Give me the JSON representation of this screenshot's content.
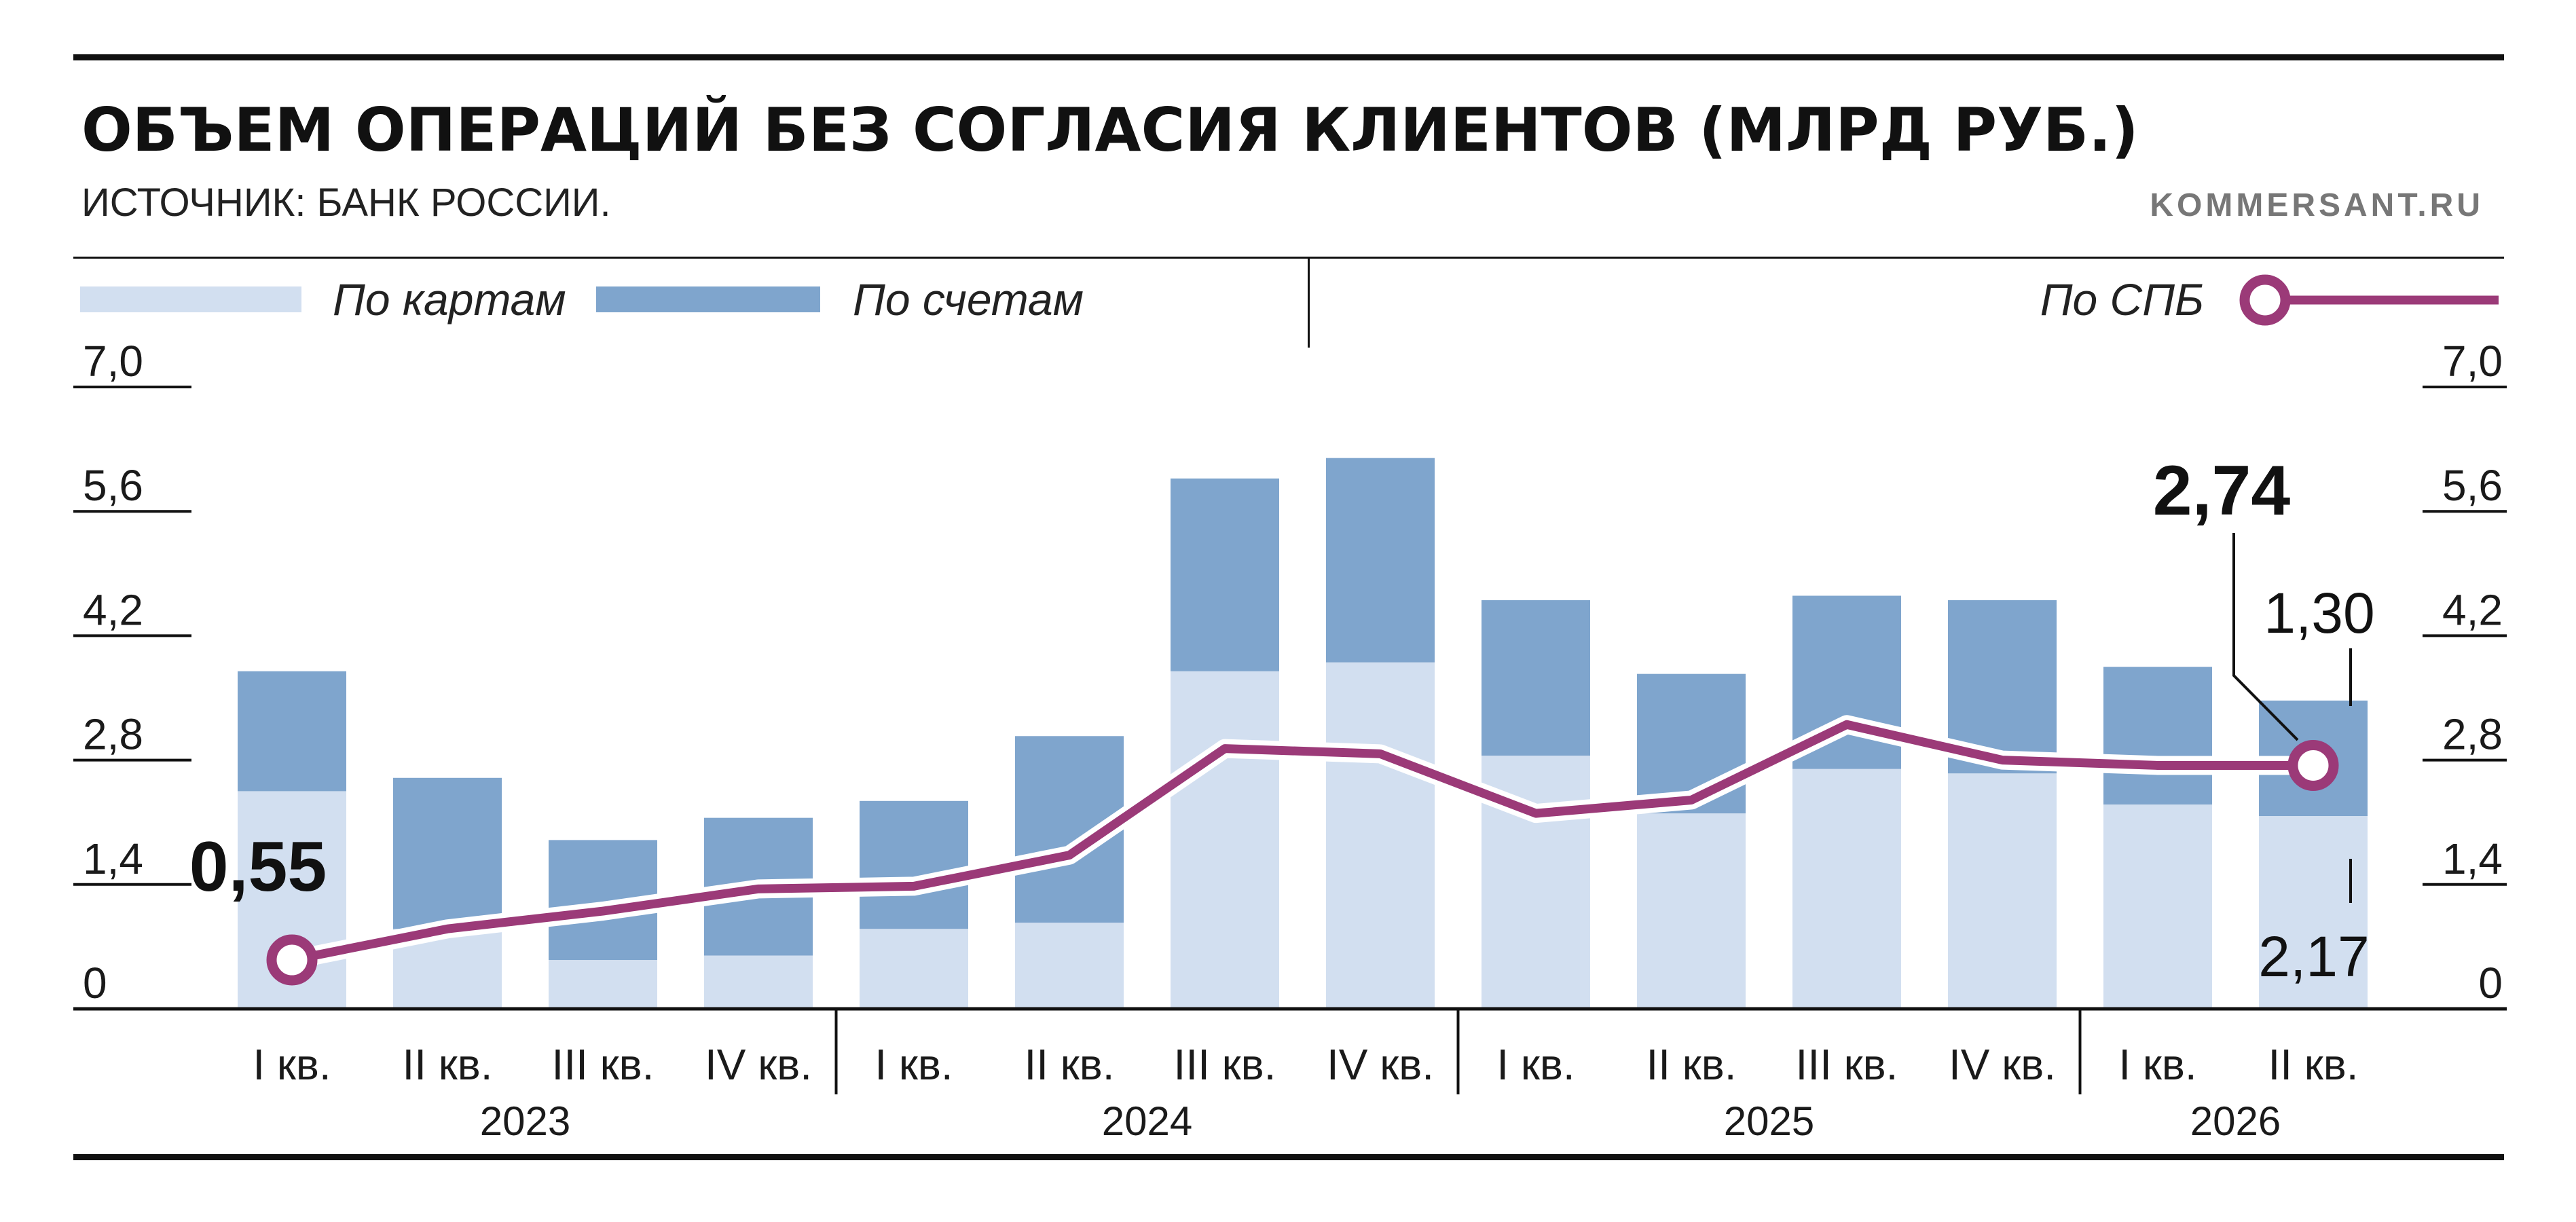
{
  "colors": {
    "cards": "#d2dff0",
    "accounts": "#7fa5cd",
    "spb_line": "#9b3a78",
    "axis": "#111111"
  },
  "header": {
    "title": "ОБЪЕМ ОПЕРАЦИЙ БЕЗ СОГЛАСИЯ КЛИЕНТОВ (МЛРД РУБ.)",
    "source": "ИСТОЧНИК: БАНК РОССИИ.",
    "site": "KOMMERSANT.RU"
  },
  "legend": {
    "cards": "По картам",
    "accounts": "По счетам",
    "spb": "По СПБ"
  },
  "chart_data": {
    "type": "bar",
    "stacked": true,
    "categories": [
      "I кв.",
      "II кв.",
      "III кв.",
      "IV кв.",
      "I кв.",
      "II кв.",
      "III кв.",
      "IV кв.",
      "I кв.",
      "II кв.",
      "III кв.",
      "IV кв.",
      "I кв.",
      "II кв."
    ],
    "years": [
      {
        "label": "2023",
        "start": 0,
        "end": 3
      },
      {
        "label": "2024",
        "start": 4,
        "end": 7
      },
      {
        "label": "2025",
        "start": 8,
        "end": 11
      },
      {
        "label": "2026",
        "start": 12,
        "end": 13
      }
    ],
    "series": [
      {
        "name": "По картам",
        "values": [
          2.45,
          0.9,
          0.55,
          0.6,
          0.9,
          0.97,
          3.8,
          3.9,
          2.85,
          2.2,
          2.7,
          2.65,
          2.3,
          2.17
        ]
      },
      {
        "name": "По счетам",
        "values": [
          1.35,
          1.7,
          1.35,
          1.55,
          1.44,
          2.1,
          2.17,
          2.3,
          1.75,
          1.57,
          1.95,
          1.95,
          1.55,
          1.3
        ]
      }
    ],
    "line_series": {
      "name": "По СПБ",
      "values": [
        0.55,
        0.9,
        1.1,
        1.35,
        1.38,
        1.73,
        2.93,
        2.87,
        2.2,
        2.35,
        3.2,
        2.8,
        2.74,
        2.74
      ]
    },
    "annotations": {
      "spb_first": "0,55",
      "spb_last": "2,74",
      "accounts_last": "1,30",
      "cards_last": "2,17"
    },
    "y_ticks": [
      "0",
      "1,4",
      "2,8",
      "4,2",
      "5,6",
      "7,0"
    ],
    "ylim": [
      0,
      7.0
    ],
    "legend_position": "top",
    "grid": false
  }
}
